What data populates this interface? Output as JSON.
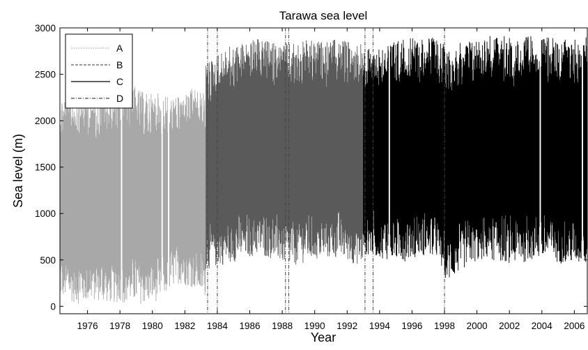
{
  "chart_data": {
    "type": "line",
    "title": "Tarawa sea level",
    "xlabel": "Year",
    "ylabel": "Sea level (m)",
    "xlim": [
      1974.3,
      2006.8
    ],
    "ylim": [
      -80,
      3000
    ],
    "x_ticks": [
      1976,
      1978,
      1980,
      1982,
      1984,
      1986,
      1988,
      1990,
      1992,
      1994,
      1996,
      1998,
      2000,
      2002,
      2004,
      2006
    ],
    "y_ticks": [
      0,
      500,
      1000,
      1500,
      2000,
      2500,
      3000
    ],
    "grid": false,
    "legend_position": "top-left",
    "series": [
      {
        "name": "A",
        "color": "#a8a8a8",
        "style": "dotted",
        "segments": [
          [
            1974.3,
            1983.3
          ]
        ],
        "envelope": [
          [
            1974.5,
            80,
            2280
          ],
          [
            1975.5,
            20,
            2300
          ],
          [
            1976.5,
            60,
            2280
          ],
          [
            1977.5,
            30,
            2320
          ],
          [
            1978.5,
            40,
            2420
          ],
          [
            1979.5,
            20,
            2300
          ],
          [
            1980.5,
            60,
            2300
          ],
          [
            1981.5,
            250,
            2250
          ],
          [
            1982.5,
            200,
            2350
          ],
          [
            1983.2,
            100,
            2300
          ]
        ]
      },
      {
        "name": "B",
        "color": "#5a5a5a",
        "style": "dashed",
        "segments": [
          [
            1983.3,
            1993.0
          ]
        ],
        "envelope": [
          [
            1983.5,
            400,
            2650
          ],
          [
            1984.5,
            450,
            2780
          ],
          [
            1985.5,
            500,
            2850
          ],
          [
            1986.5,
            550,
            2880
          ],
          [
            1987.5,
            500,
            2850
          ],
          [
            1988.5,
            420,
            2830
          ],
          [
            1989.5,
            480,
            2870
          ],
          [
            1990.5,
            500,
            2850
          ],
          [
            1991.5,
            520,
            2880
          ],
          [
            1992.5,
            450,
            2850
          ]
        ]
      },
      {
        "name": "C",
        "color": "#000000",
        "style": "solid",
        "segments": [
          [
            1993.0,
            2006.8
          ]
        ],
        "envelope": [
          [
            1993.5,
            550,
            2780
          ],
          [
            1994.5,
            500,
            2850
          ],
          [
            1995.5,
            480,
            2880
          ],
          [
            1996.5,
            550,
            2900
          ],
          [
            1997.5,
            520,
            2900
          ],
          [
            1998.2,
            250,
            2780
          ],
          [
            1999.5,
            450,
            2880
          ],
          [
            2000.5,
            500,
            2920
          ],
          [
            2001.5,
            480,
            2920
          ],
          [
            2002.5,
            450,
            2880
          ],
          [
            2003.5,
            500,
            2920
          ],
          [
            2004.5,
            480,
            2900
          ],
          [
            2005.5,
            450,
            2880
          ],
          [
            2006.5,
            450,
            2900
          ]
        ]
      },
      {
        "name": "D",
        "color": "#444444",
        "style": "dash-dot",
        "markers_x": [
          1983.4,
          1984.0,
          1988.2,
          1988.4,
          1993.1,
          1993.6,
          1998.0
        ]
      }
    ],
    "gaps_x": [
      1978.1,
      1980.6,
      1981.0,
      1994.6,
      2003.9,
      2006.5
    ]
  }
}
